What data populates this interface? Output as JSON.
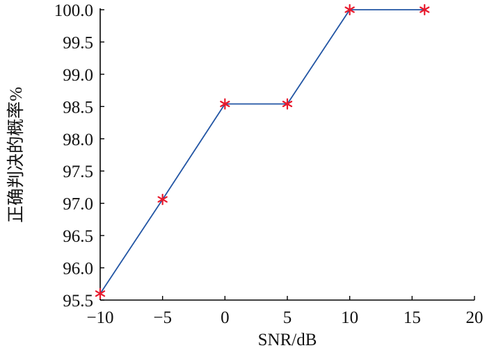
{
  "chart_data": {
    "type": "line",
    "xlabel": "SNR/dB",
    "ylabel": "正确判决的概率%",
    "xlim": [
      -10,
      20
    ],
    "ylim": [
      95.5,
      100.0
    ],
    "x_ticks": [
      -10,
      -5,
      0,
      5,
      10,
      15,
      20
    ],
    "x_tick_labels": [
      "−10",
      "−5",
      "0",
      "5",
      "10",
      "15",
      "20"
    ],
    "y_ticks": [
      95.5,
      96.0,
      96.5,
      97.0,
      97.5,
      98.0,
      98.5,
      99.0,
      99.5,
      100.0
    ],
    "y_tick_labels": [
      "95.5",
      "96.0",
      "96.5",
      "97.0",
      "97.5",
      "98.0",
      "98.5",
      "99.0",
      "99.5",
      "100.0"
    ],
    "grid": false,
    "series": [
      {
        "x": [
          -10,
          -5,
          0,
          5,
          10,
          16
        ],
        "y": [
          95.6,
          97.06,
          98.54,
          98.54,
          100.0,
          100.0
        ],
        "line_color": "#2255a4",
        "marker": "asterisk",
        "marker_color": "#e8192c"
      }
    ]
  }
}
